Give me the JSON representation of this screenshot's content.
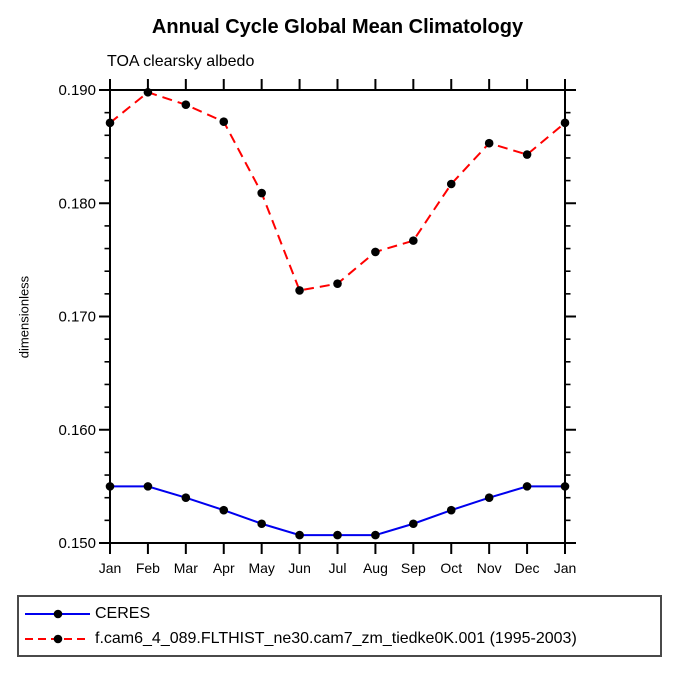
{
  "header": {
    "title": "Annual Cycle Global Mean Climatology",
    "subtitle": "TOA clearsky albedo"
  },
  "chart_data": {
    "type": "line",
    "title": "Annual Cycle Global Mean Climatology",
    "subtitle": "TOA clearsky albedo",
    "ylabel": "dimensionless",
    "xlabel": "",
    "categories": [
      "Jan",
      "Feb",
      "Mar",
      "Apr",
      "May",
      "Jun",
      "Jul",
      "Aug",
      "Sep",
      "Oct",
      "Nov",
      "Dec",
      "Jan"
    ],
    "series": [
      {
        "name": "CERES",
        "color": "#0000ee",
        "line_style": "solid",
        "marker": "filled-circle",
        "marker_color": "#000000",
        "values": [
          0.155,
          0.155,
          0.154,
          0.1529,
          0.1517,
          0.1507,
          0.1507,
          0.1507,
          0.1517,
          0.1529,
          0.154,
          0.155,
          0.155
        ]
      },
      {
        "name": "f.cam6_4_089.FLTHIST_ne30.cam7_zm_tiedke0K.001 (1995-2003)",
        "color": "#ff0000",
        "line_style": "dashed",
        "marker": "filled-circle",
        "marker_color": "#000000",
        "values": [
          0.1871,
          0.1898,
          0.1887,
          0.1872,
          0.1809,
          0.1723,
          0.1729,
          0.1757,
          0.1767,
          0.1817,
          0.1853,
          0.1843,
          0.1871
        ]
      }
    ],
    "ylim": [
      0.15,
      0.19
    ],
    "ytick_labels": [
      "0.150",
      "0.160",
      "0.170",
      "0.180",
      "0.190"
    ],
    "y_minor_step": 0.002,
    "grid": false,
    "legend_position": "bottom-box",
    "axis_color": "#000000"
  }
}
